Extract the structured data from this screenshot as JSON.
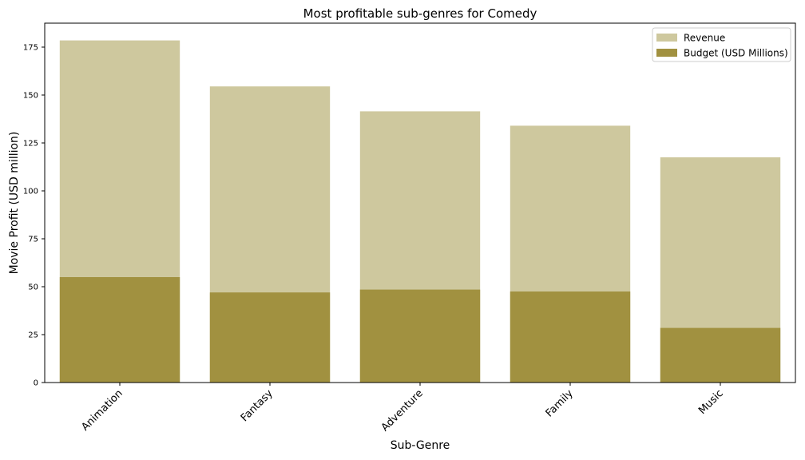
{
  "chart_data": {
    "type": "bar",
    "title": "Most profitable sub-genres for Comedy",
    "xlabel": "Sub-Genre",
    "ylabel": "Movie Profit (USD million)",
    "categories": [
      "Animation",
      "Fantasy",
      "Adventure",
      "Family",
      "Music"
    ],
    "ylim": [
      0,
      187.5
    ],
    "yticks": [
      0,
      25,
      50,
      75,
      100,
      125,
      150,
      175
    ],
    "grid": false,
    "legend_position": "top-right",
    "series": [
      {
        "name": "Revenue",
        "color": "#cec89e",
        "values": [
          178.5,
          154.5,
          141.5,
          134,
          117.5
        ]
      },
      {
        "name": "Budget (USD Millions)",
        "color": "#a19140",
        "values": [
          55,
          47,
          48.5,
          47.5,
          28.5
        ]
      }
    ]
  }
}
